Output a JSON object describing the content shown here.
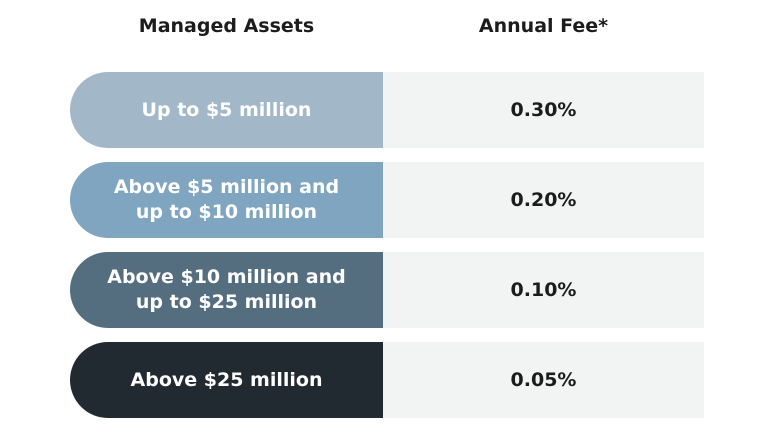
{
  "headers": {
    "assets": "Managed Assets",
    "fee": "Annual Fee*"
  },
  "tiers": [
    {
      "label_line1": "Up to $5 million",
      "label_line2": "",
      "fee": "0.30%",
      "color": "#a2b8c9"
    },
    {
      "label_line1": "Above $5 million and",
      "label_line2": "up to $10 million",
      "fee": "0.20%",
      "color": "#7fa5c1"
    },
    {
      "label_line1": "Above $10 million and",
      "label_line2": "up to $25 million",
      "fee": "0.10%",
      "color": "#546e80"
    },
    {
      "label_line1": "Above $25 million",
      "label_line2": "",
      "fee": "0.05%",
      "color": "#222a31"
    }
  ]
}
